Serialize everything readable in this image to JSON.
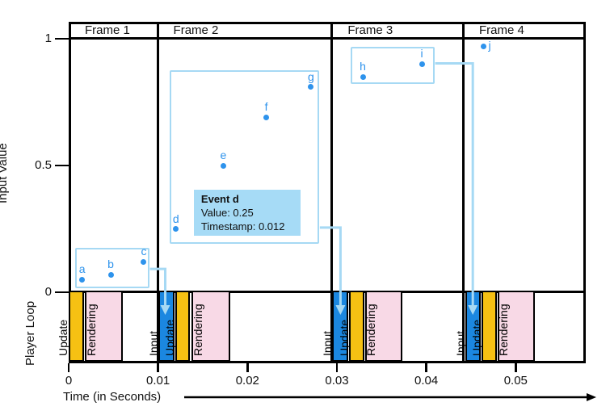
{
  "colors": {
    "point": "#2E93EC",
    "group_box_border": "#A6D9F4",
    "connector": "#A6D9F4",
    "tooltip_bg": "#A6DBF6",
    "input": "#1B87E0",
    "update": "#F6C113",
    "rendering": "#F8D9E6",
    "axis": "#000000"
  },
  "chart_data": {
    "type": "scatter",
    "xlabel": "Time (in Seconds)",
    "ylabel": "Input Value",
    "band_label": "Player Loop",
    "xlim": [
      0,
      0.058
    ],
    "ylim": [
      0,
      1
    ],
    "grid": false,
    "x_ticks": [
      {
        "value": 0,
        "label": "0"
      },
      {
        "value": 0.01,
        "label": "0.01"
      },
      {
        "value": 0.02,
        "label": "0.02"
      },
      {
        "value": 0.03,
        "label": "0.03"
      },
      {
        "value": 0.04,
        "label": "0.04"
      },
      {
        "value": 0.05,
        "label": "0.05"
      }
    ],
    "y_ticks": [
      {
        "value": 0,
        "label": "0"
      },
      {
        "value": 0.5,
        "label": "0.5"
      },
      {
        "value": 1,
        "label": "1"
      }
    ],
    "frames": [
      {
        "label": "Frame 1",
        "t_start": 0,
        "t_end": 0.0099
      },
      {
        "label": "Frame 2",
        "t_start": 0.0099,
        "t_end": 0.0294
      },
      {
        "label": "Frame 3",
        "t_start": 0.0294,
        "t_end": 0.0441
      },
      {
        "label": "Frame 4",
        "t_start": 0.0441,
        "t_end": 0.0578
      }
    ],
    "points": [
      {
        "label": "a",
        "t": 0.0015,
        "value": 0.05,
        "label_pos": "top"
      },
      {
        "label": "b",
        "t": 0.0047,
        "value": 0.07,
        "label_pos": "top"
      },
      {
        "label": "c",
        "t": 0.0084,
        "value": 0.12,
        "label_pos": "top"
      },
      {
        "label": "d",
        "t": 0.012,
        "value": 0.25,
        "label_pos": "top"
      },
      {
        "label": "e",
        "t": 0.0173,
        "value": 0.5,
        "label_pos": "top"
      },
      {
        "label": "f",
        "t": 0.0221,
        "value": 0.69,
        "label_pos": "top"
      },
      {
        "label": "g",
        "t": 0.0271,
        "value": 0.81,
        "label_pos": "top"
      },
      {
        "label": "h",
        "t": 0.0329,
        "value": 0.85,
        "label_pos": "top"
      },
      {
        "label": "i",
        "t": 0.0395,
        "value": 0.9,
        "label_pos": "top"
      },
      {
        "label": "j",
        "t": 0.0464,
        "value": 0.97,
        "label_pos": "right"
      }
    ],
    "event_groups": [
      {
        "contains": [
          "a",
          "b",
          "c"
        ],
        "t0": 0.0007,
        "t1": 0.009,
        "v0": 0.017,
        "v1": 0.176,
        "connector": {
          "exit_v": 0.092,
          "target_t": 0.0108
        }
      },
      {
        "contains": [
          "d",
          "e",
          "f",
          "g"
        ],
        "t0": 0.0113,
        "t1": 0.028,
        "v0": 0.192,
        "v1": 0.877,
        "connector": {
          "exit_v": 0.255,
          "target_t": 0.0304
        }
      },
      {
        "contains": [
          "h",
          "i"
        ],
        "t0": 0.0315,
        "t1": 0.0409,
        "v0": 0.821,
        "v1": 0.969,
        "connector": {
          "exit_v": 0.903,
          "target_t": 0.0452
        }
      }
    ],
    "player_loop": [
      {
        "frame": "Frame 1",
        "segments": [
          {
            "type": "update",
            "label": "Update",
            "t0": 0.0,
            "t1": 0.0017
          },
          {
            "type": "rendering",
            "label": "Rendering",
            "t0": 0.0018,
            "t1": 0.0061
          }
        ]
      },
      {
        "frame": "Frame 2",
        "segments": [
          {
            "type": "input",
            "label": "Input",
            "t0": 0.01,
            "t1": 0.0118
          },
          {
            "type": "update",
            "label": "Update",
            "t0": 0.0119,
            "t1": 0.0136
          },
          {
            "type": "rendering",
            "label": "Rendering",
            "t0": 0.0137,
            "t1": 0.0181
          }
        ]
      },
      {
        "frame": "Frame 3",
        "segments": [
          {
            "type": "input",
            "label": "Input",
            "t0": 0.0295,
            "t1": 0.0313
          },
          {
            "type": "update",
            "label": "Update",
            "t0": 0.0314,
            "t1": 0.0331
          },
          {
            "type": "rendering",
            "label": "Rendering",
            "t0": 0.0332,
            "t1": 0.0373
          }
        ]
      },
      {
        "frame": "Frame 4",
        "segments": [
          {
            "type": "input",
            "label": "Input",
            "t0": 0.0444,
            "t1": 0.0461
          },
          {
            "type": "update",
            "label": "Update",
            "t0": 0.0462,
            "t1": 0.0479
          },
          {
            "type": "rendering",
            "label": "Rendering",
            "t0": 0.048,
            "t1": 0.0521
          }
        ]
      }
    ],
    "tooltip": {
      "title": "Event d",
      "lines": [
        "Value: 0.25",
        "Timestamp: 0.012"
      ],
      "t": 0.014,
      "v_top": 0.404
    }
  }
}
